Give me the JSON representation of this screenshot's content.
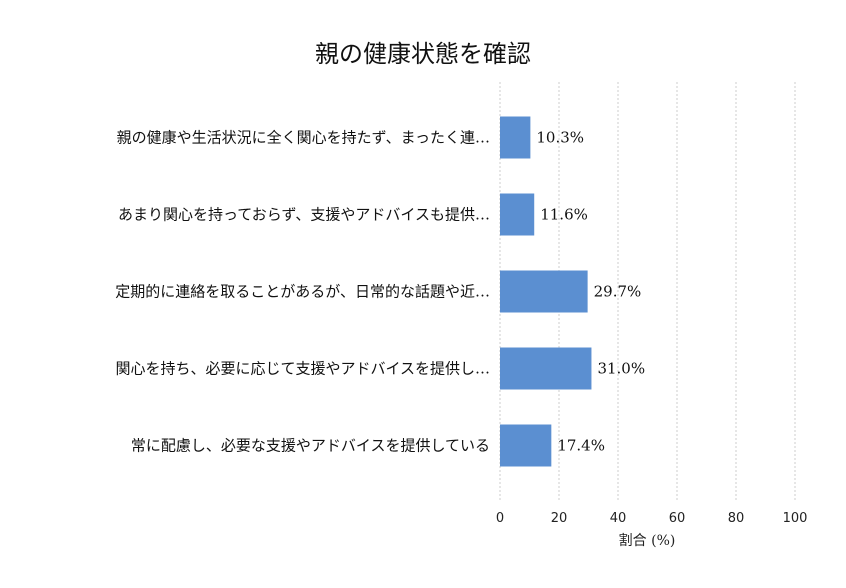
{
  "chart_data": {
    "type": "bar",
    "orientation": "horizontal",
    "title": "親の健康状態を確認",
    "xlabel": "割合 (%)",
    "ylabel": "",
    "xlim": [
      0,
      100
    ],
    "xticks": [
      "0",
      "20",
      "40",
      "60",
      "80",
      "100"
    ],
    "grid": "vertical dashed",
    "categories": [
      "親の健康や生活状況に全く関心を持たず、まったく連…",
      "あまり関心を持っておらず、支援やアドバイスも提供…",
      "定期的に連絡を取ることがあるが、日常的な話題や近…",
      "関心を持ち、必要に応じて支援やアドバイスを提供し…",
      "常に配慮し、必要な支援やアドバイスを提供している"
    ],
    "values": [
      10.3,
      11.6,
      29.7,
      31.0,
      17.4
    ],
    "value_labels": [
      "10.3%",
      "11.6%",
      "29.7%",
      "31.0%",
      "17.4%"
    ],
    "bar_color": "#5b8fd1"
  }
}
